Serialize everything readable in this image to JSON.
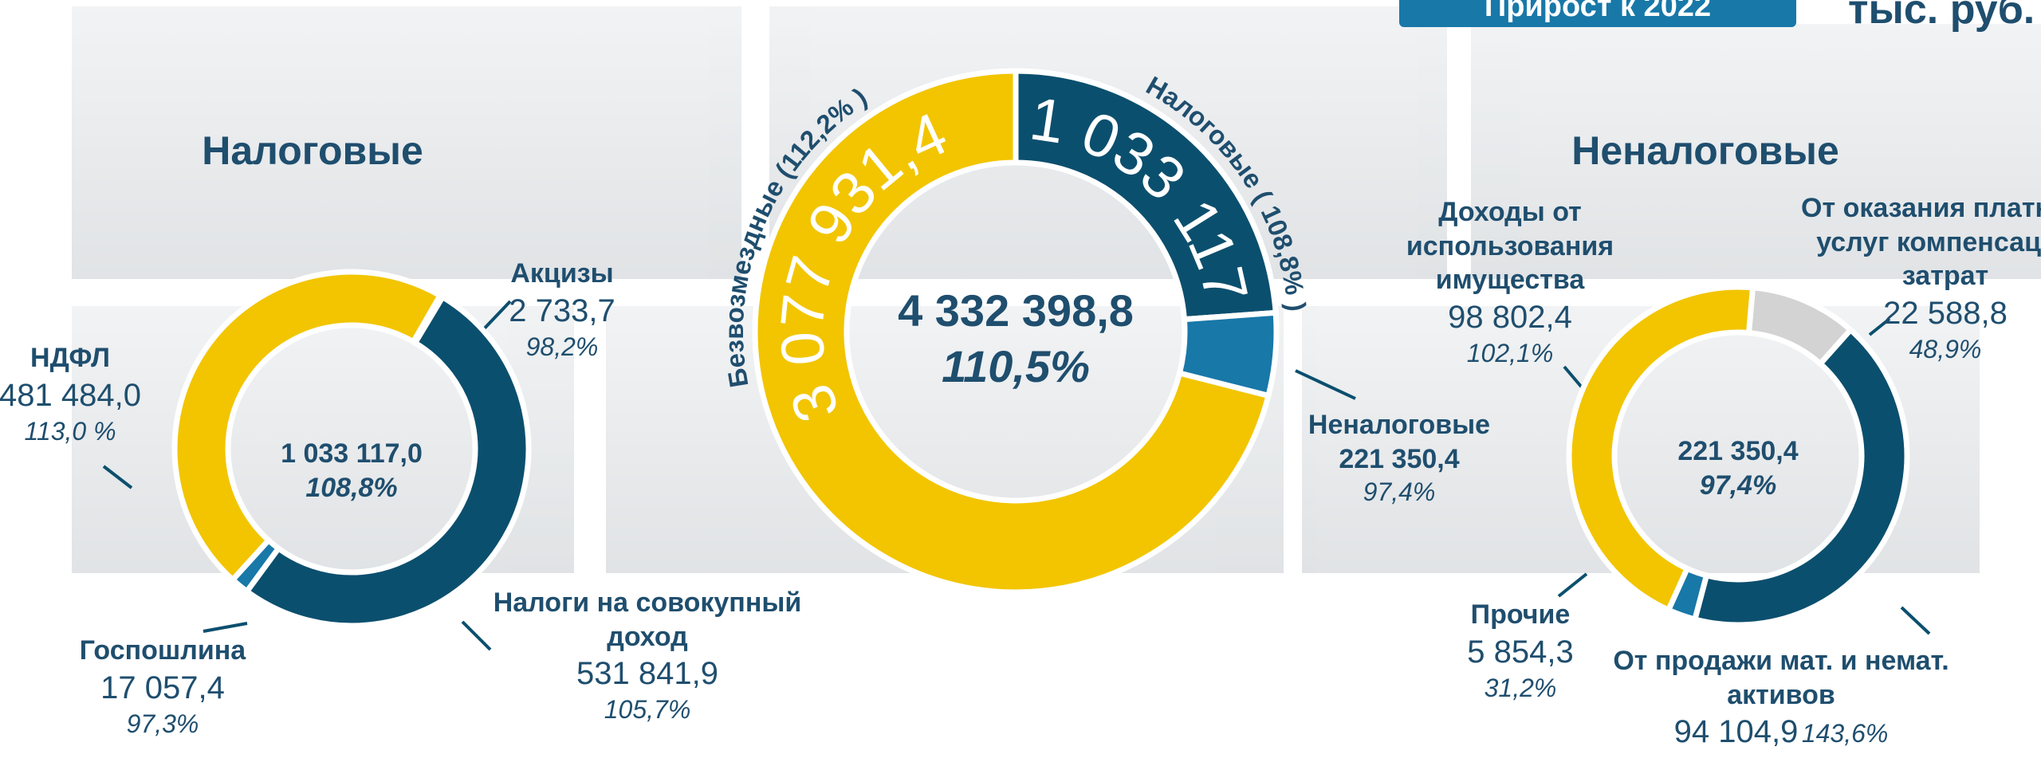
{
  "header": {
    "badge": "Прирост к 2022",
    "units": "тыс. руб."
  },
  "chart_data": [
    {
      "type": "donut",
      "title": "Налоговые",
      "total": 1033117.0,
      "total_label": "1 033 117,0",
      "total_growth_label": "108,8%",
      "categories": [
        "Акцизы",
        "Налоги на совокупный доход",
        "Госпошлина",
        "НДФЛ"
      ],
      "values": [
        2733.7,
        531841.9,
        17057.4,
        481484.0
      ],
      "value_labels": [
        "2 733,7",
        "531 841,9",
        "17 057,4",
        "481 484,0"
      ],
      "growth_labels": [
        "98,2%",
        "105,7%",
        "97,3%",
        "113,0 %"
      ],
      "colors": [
        "#d3d3d3",
        "#0b4f6e",
        "#1878a8",
        "#f2c500"
      ]
    },
    {
      "type": "donut",
      "total": 4332398.8,
      "total_label": "4 332 398,8",
      "total_growth_label": "110,5%",
      "categories": [
        "Налоговые",
        "Неналоговые",
        "Безвозмездные"
      ],
      "values": [
        1033117.0,
        221350.4,
        3077931.4
      ],
      "value_labels": [
        "1 033 117",
        "221 350,4",
        "3 077 931,4"
      ],
      "growth_labels": [
        "( 108,8% )",
        "97,4%",
        "(112,2% )"
      ],
      "colors": [
        "#0b4f6e",
        "#1878a8",
        "#f2c500"
      ]
    },
    {
      "type": "donut",
      "title": "Неналоговые",
      "total": 221350.4,
      "total_label": "221 350,4",
      "total_growth_label": "97,4%",
      "categories": [
        "От оказания платных услуг компенсации затрат",
        "От продажи мат. и немат. активов",
        "Прочие",
        "Доходы от использования имущества"
      ],
      "values": [
        22588.8,
        94104.9,
        5854.3,
        98802.4
      ],
      "value_labels": [
        "22 588,8",
        "94 104,9",
        "5 854,3",
        "98 802,4"
      ],
      "growth_labels": [
        "48,9%",
        "143,6%",
        "31,2%",
        "102,1%"
      ],
      "colors": [
        "#d3d3d3",
        "#0b4f6e",
        "#1878a8",
        "#f2c500"
      ]
    }
  ]
}
